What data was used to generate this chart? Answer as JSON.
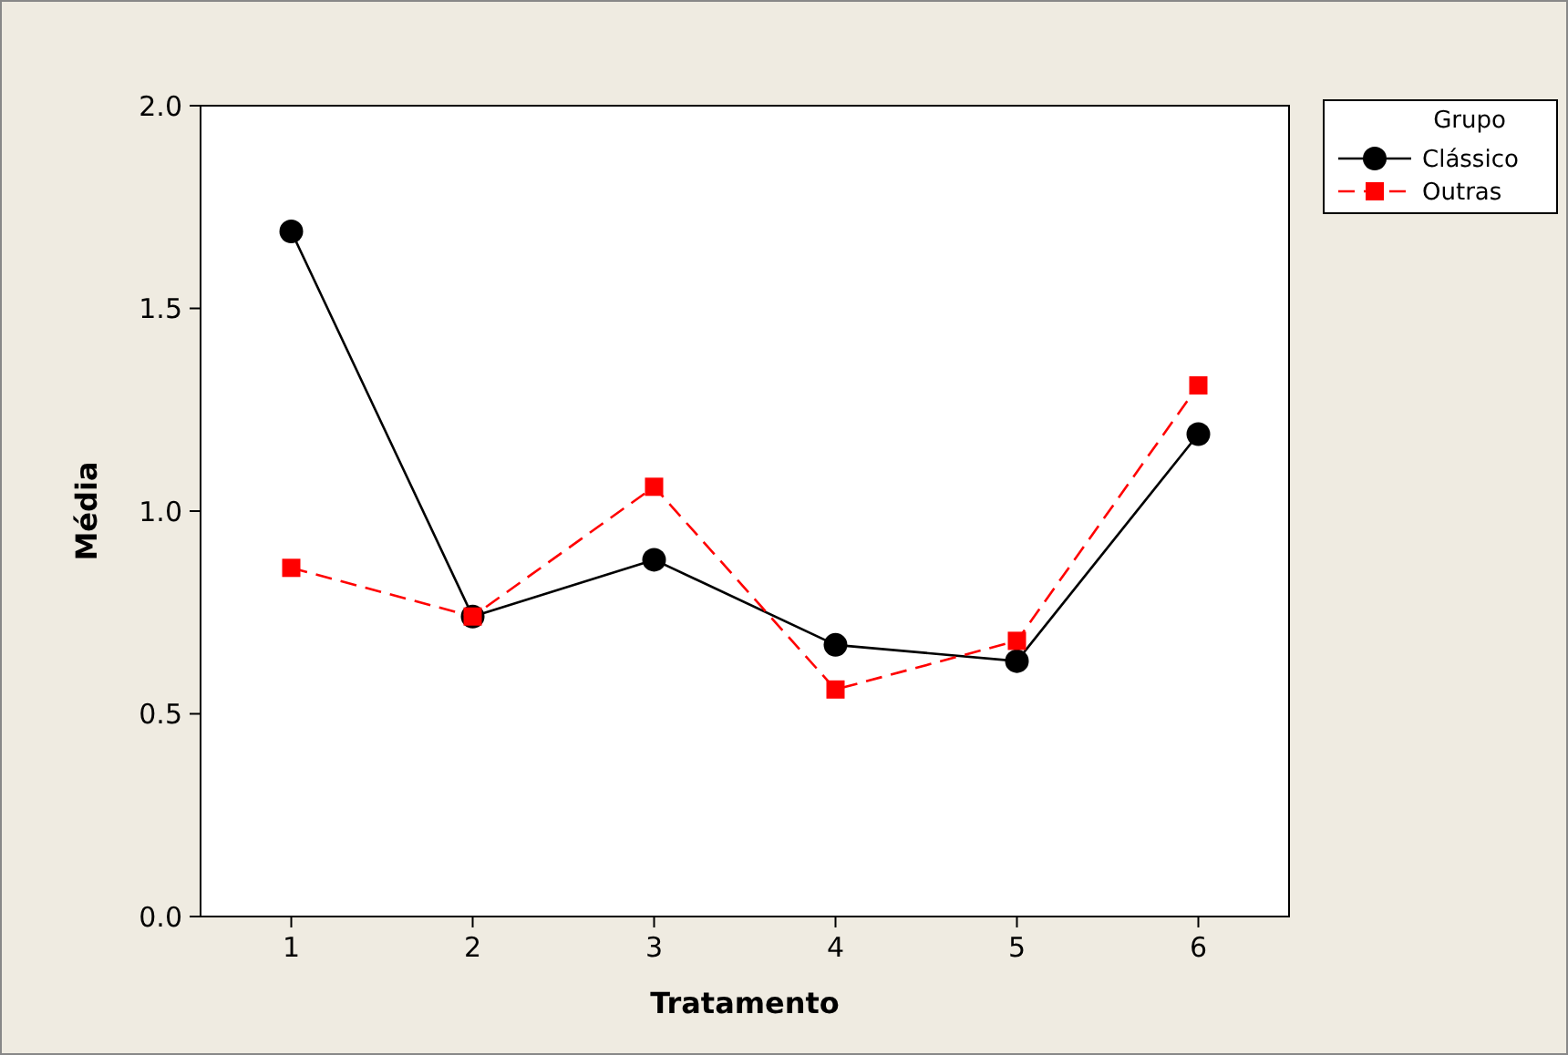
{
  "chart_data": {
    "type": "line",
    "xlabel": "Tratamento",
    "ylabel": "Média",
    "legend_title": "Grupo",
    "x": [
      1,
      2,
      3,
      4,
      5,
      6
    ],
    "xlim": [
      0.5,
      6.5
    ],
    "xticks": [
      1,
      2,
      3,
      4,
      5,
      6
    ],
    "ylim": [
      0,
      2
    ],
    "yticks": [
      {
        "value": 0,
        "label": "0.0"
      },
      {
        "value": 0.5,
        "label": "0.5"
      },
      {
        "value": 1,
        "label": "1.0"
      },
      {
        "value": 1.5,
        "label": "1.5"
      },
      {
        "value": 2,
        "label": "2.0"
      }
    ],
    "legend": "top right",
    "grid": false,
    "series": [
      {
        "name": "Clássico",
        "color": "#000000",
        "marker": "circle",
        "line_style": "solid",
        "values": [
          1.69,
          0.74,
          0.88,
          0.67,
          0.63,
          1.19
        ]
      },
      {
        "name": "Outras",
        "color": "#ff0000",
        "marker": "square",
        "line_style": "dashed",
        "values": [
          0.86,
          0.74,
          1.06,
          0.56,
          0.68,
          1.31
        ]
      }
    ]
  }
}
